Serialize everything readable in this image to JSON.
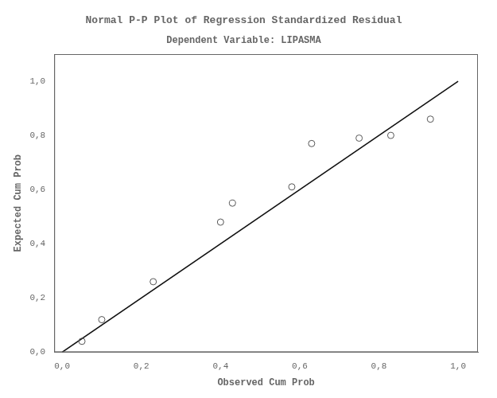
{
  "chart_data": {
    "type": "scatter",
    "title": "Normal P-P Plot of Regression Standardized Residual",
    "subtitle": "Dependent Variable: LIPASMA",
    "xlabel": "Observed Cum Prob",
    "ylabel": "Expected Cum Prob",
    "series": [
      {
        "type": "line",
        "x": [
          0.0,
          1.0
        ],
        "values": [
          0.0,
          1.0
        ],
        "color": "#111111",
        "line_style": "solid"
      },
      {
        "type": "scatter",
        "x": [
          0.05,
          0.1,
          0.23,
          0.4,
          0.43,
          0.58,
          0.63,
          0.75,
          0.83,
          0.93
        ],
        "values": [
          0.04,
          0.12,
          0.26,
          0.48,
          0.55,
          0.61,
          0.77,
          0.79,
          0.8,
          0.86
        ],
        "color": "#555555",
        "marker": "circle"
      }
    ],
    "xlim": [
      -0.02,
      1.05
    ],
    "ylim": [
      0.0,
      1.1
    ],
    "xticks": [
      {
        "value": 0.0,
        "label": "0,0"
      },
      {
        "value": 0.2,
        "label": "0,2"
      },
      {
        "value": 0.4,
        "label": "0,4"
      },
      {
        "value": 0.6,
        "label": "0,6"
      },
      {
        "value": 0.8,
        "label": "0,8"
      },
      {
        "value": 1.0,
        "label": "1,0"
      }
    ],
    "yticks": [
      {
        "value": 0.0,
        "label": "0,0"
      },
      {
        "value": 0.2,
        "label": "0,2"
      },
      {
        "value": 0.4,
        "label": "0,4"
      },
      {
        "value": 0.6,
        "label": "0,6"
      },
      {
        "value": 0.8,
        "label": "0,8"
      },
      {
        "value": 1.0,
        "label": "1,0"
      }
    ],
    "grid": false
  }
}
